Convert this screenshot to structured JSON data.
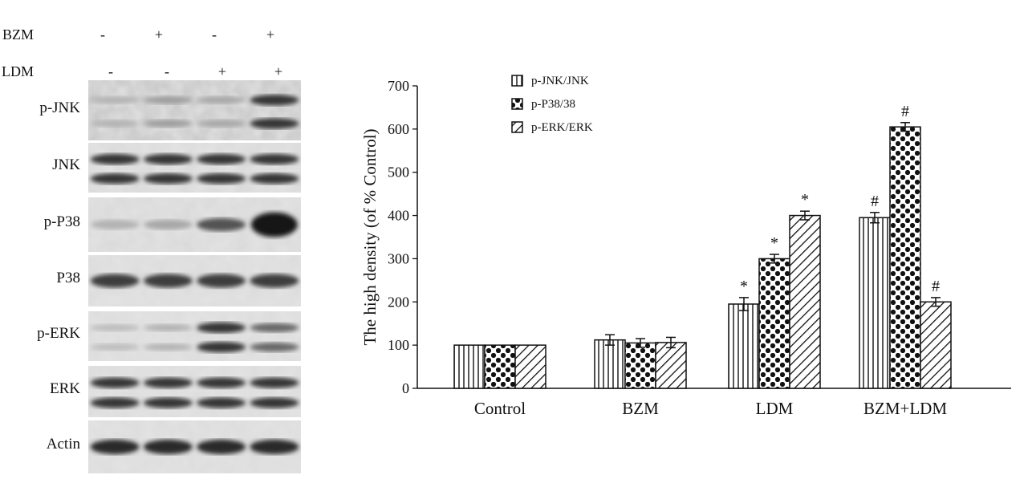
{
  "treatments": [
    {
      "name": "BZM",
      "signs": [
        "-",
        "+",
        "-",
        "+"
      ]
    },
    {
      "name": "LDM",
      "signs": [
        "-",
        "-",
        "+",
        "+"
      ]
    }
  ],
  "blots": [
    {
      "label": "p-JNK",
      "bands": [
        0.25,
        0.35,
        0.3,
        0.85
      ],
      "double": true,
      "noise": 0.55
    },
    {
      "label": "JNK",
      "bands": [
        0.85,
        0.85,
        0.85,
        0.85
      ],
      "double": true,
      "noise": 0.2
    },
    {
      "label": "p-P38",
      "bands": [
        0.25,
        0.3,
        0.7,
        1.0
      ],
      "double": false,
      "noise": 0.2
    },
    {
      "label": "P38",
      "bands": [
        0.8,
        0.8,
        0.8,
        0.8
      ],
      "double": false,
      "noise": 0.15
    },
    {
      "label": "p-ERK",
      "bands": [
        0.2,
        0.25,
        0.85,
        0.6
      ],
      "double": true,
      "noise": 0.15
    },
    {
      "label": "ERK",
      "bands": [
        0.85,
        0.85,
        0.85,
        0.85
      ],
      "double": true,
      "noise": 0.15
    },
    {
      "label": "Actin",
      "bands": [
        0.9,
        0.9,
        0.9,
        0.9
      ],
      "double": false,
      "noise": 0.15
    }
  ],
  "chart_data": {
    "type": "bar",
    "title": "",
    "xlabel": "",
    "ylabel": "The high density (of % Control)",
    "ylim": [
      0,
      700
    ],
    "yticks": [
      0,
      100,
      200,
      300,
      400,
      500,
      600,
      700
    ],
    "grid": false,
    "legend_position": "top-left",
    "categories": [
      "Control",
      "BZM",
      "LDM",
      "BZM+LDM"
    ],
    "series": [
      {
        "name": "p-JNK/JNK",
        "pattern": "vertical-lines",
        "values": [
          100,
          112,
          195,
          395
        ],
        "errors": [
          0,
          12,
          15,
          12
        ],
        "marks": [
          "",
          "",
          "*",
          "#"
        ]
      },
      {
        "name": "p-P38/38",
        "pattern": "diamond-check",
        "values": [
          100,
          105,
          300,
          605
        ],
        "errors": [
          0,
          10,
          10,
          10
        ],
        "marks": [
          "",
          "",
          "*",
          "#"
        ]
      },
      {
        "name": "p-ERK/ERK",
        "pattern": "diagonal-lines",
        "values": [
          100,
          106,
          400,
          200
        ],
        "errors": [
          0,
          12,
          10,
          10
        ],
        "marks": [
          "",
          "",
          "*",
          "#"
        ]
      }
    ]
  }
}
